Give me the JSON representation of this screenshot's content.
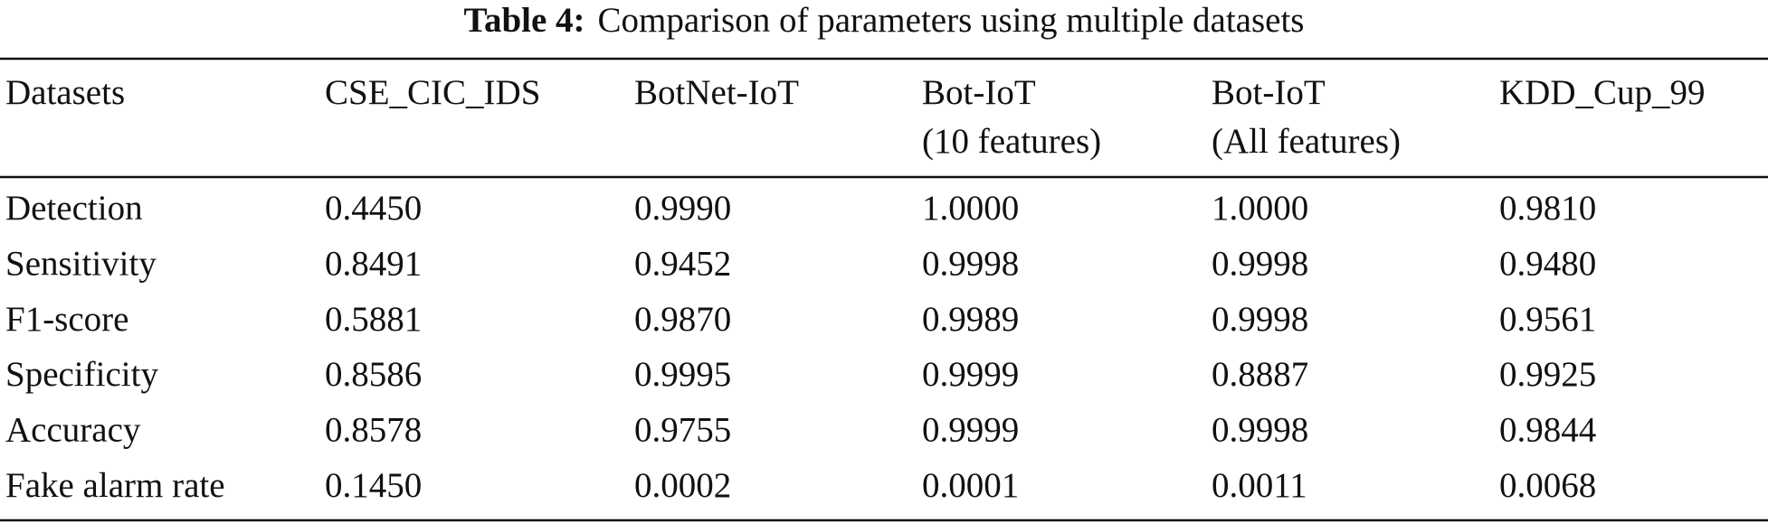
{
  "caption": {
    "label": "Table 4:",
    "text": "Comparison of parameters using multiple datasets"
  },
  "table": {
    "header": [
      [
        "Datasets"
      ],
      [
        "CSE_CIC_IDS"
      ],
      [
        "BotNet-IoT"
      ],
      [
        "Bot-IoT",
        "(10 features)"
      ],
      [
        "Bot-IoT",
        "(All features)"
      ],
      [
        "KDD_Cup_99"
      ]
    ],
    "rows": [
      [
        "Detection",
        "0.4450",
        "0.9990",
        "1.0000",
        "1.0000",
        "0.9810"
      ],
      [
        "Sensitivity",
        "0.8491",
        "0.9452",
        "0.9998",
        "0.9998",
        "0.9480"
      ],
      [
        "F1-score",
        "0.5881",
        "0.9870",
        "0.9989",
        "0.9998",
        "0.9561"
      ],
      [
        "Specificity",
        "0.8586",
        "0.9995",
        "0.9999",
        "0.8887",
        "0.9925"
      ],
      [
        "Accuracy",
        "0.8578",
        "0.9755",
        "0.9999",
        "0.9998",
        "0.9844"
      ],
      [
        "Fake alarm rate",
        "0.1450",
        "0.0002",
        "0.0001",
        "0.0011",
        "0.0068"
      ]
    ]
  }
}
